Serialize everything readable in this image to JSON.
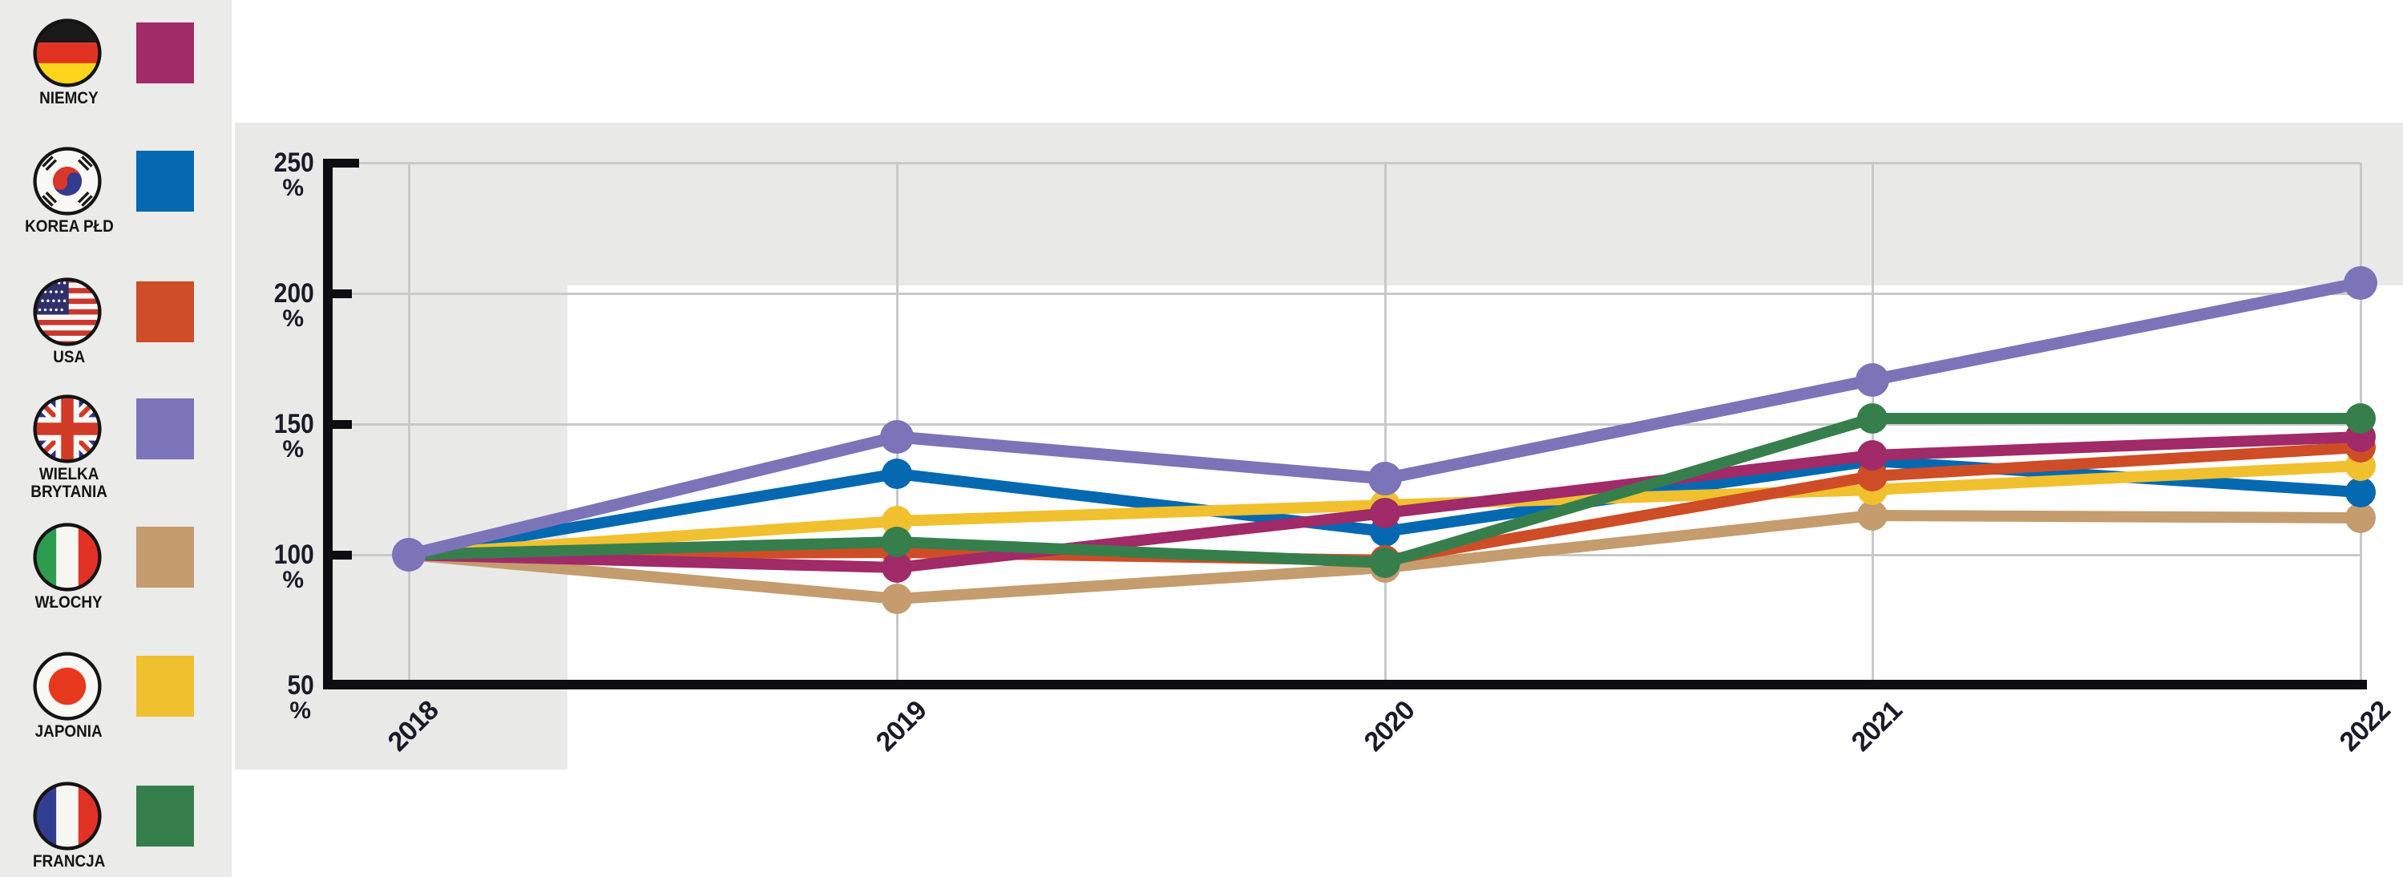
{
  "legend": {
    "items": [
      {
        "key": "niemcy",
        "label": "NIEMCY",
        "flag": "germany",
        "color": "#A12A68"
      },
      {
        "key": "korea-pld",
        "label": "KOREA PŁD",
        "flag": "south-korea",
        "color": "#0569B1"
      },
      {
        "key": "usa",
        "label": "USA",
        "flag": "usa",
        "color": "#CE4D26"
      },
      {
        "key": "wielka-brytania",
        "label": "WIELKA\nBRYTANIA",
        "flag": "united-kingdom",
        "color": "#7B74B8"
      },
      {
        "key": "wlochy",
        "label": "WŁOCHY",
        "flag": "italy",
        "color": "#C49C6E"
      },
      {
        "key": "japonia",
        "label": "JAPONIA",
        "flag": "japan",
        "color": "#F0C02F"
      },
      {
        "key": "francja",
        "label": "FRANCJA",
        "flag": "france",
        "color": "#367F4D"
      }
    ]
  },
  "chart_data": {
    "type": "line",
    "title": "",
    "x_labels": [
      "2018",
      "2019",
      "2020",
      "2021",
      "2022"
    ],
    "y_tick_values": [
      250,
      200,
      150,
      100,
      50
    ],
    "y_unit": "%",
    "ylim": [
      50,
      250
    ],
    "grid": true,
    "legend_position": "left",
    "series": [
      {
        "key": "wlochy",
        "name": "WŁOCHY",
        "color": "#C49C6E",
        "values": [
          100,
          83,
          95,
          115,
          114
        ]
      },
      {
        "key": "korea-pld",
        "name": "KOREA PŁD",
        "color": "#0569B1",
        "values": [
          100,
          131,
          109,
          136,
          124
        ]
      },
      {
        "key": "japonia",
        "name": "JAPONIA",
        "color": "#F0C02F",
        "values": [
          100,
          113,
          119,
          125,
          134
        ]
      },
      {
        "key": "usa",
        "name": "USA",
        "color": "#CE4D26",
        "values": [
          100,
          101,
          98,
          130,
          141
        ]
      },
      {
        "key": "niemcy",
        "name": "NIEMCY",
        "color": "#A12A68",
        "values": [
          100,
          95,
          116,
          138,
          145
        ]
      },
      {
        "key": "francja",
        "name": "FRANCJA",
        "color": "#367F4D",
        "values": [
          100,
          105,
          97,
          152,
          152
        ]
      },
      {
        "key": "wielka-brytania",
        "name": "WIELKA BRYTANIA",
        "color": "#7B74B8",
        "values": [
          100,
          145,
          129,
          167,
          204
        ]
      }
    ]
  },
  "colors": {
    "panel_bg": "#ebebea",
    "band_bg": "#e9e9e8",
    "plot_bg": "#ffffff",
    "gridline": "#c9c9c9",
    "axis": "#0d0d12",
    "label_text": "#1a1a28"
  }
}
